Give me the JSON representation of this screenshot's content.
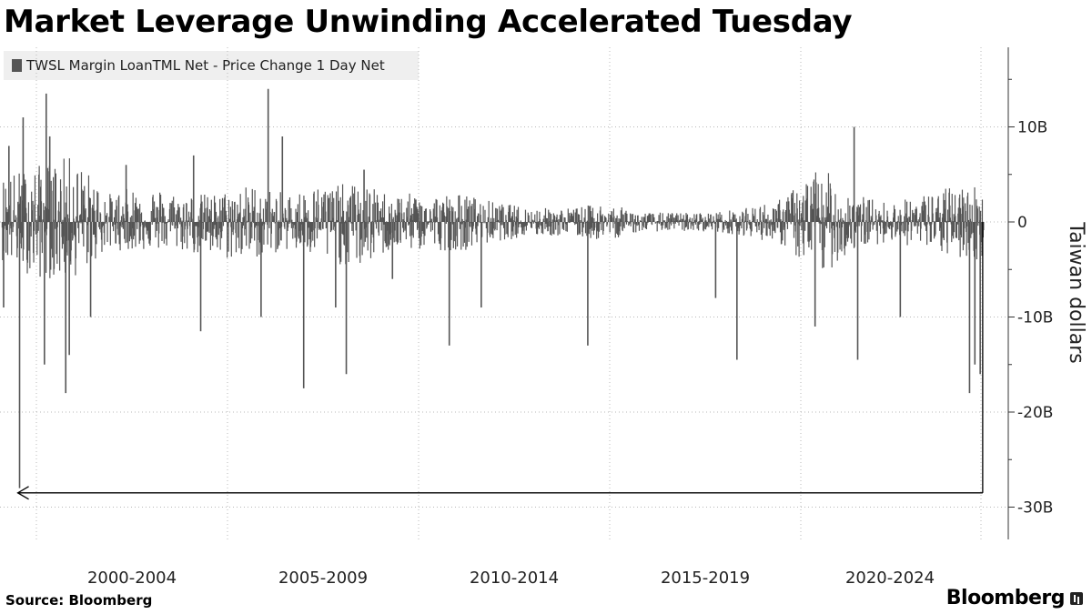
{
  "title": "Market Leverage Unwinding Accelerated Tuesday",
  "legend": {
    "label": "TWSL Margin LoanTML Net - Price Change 1 Day Net",
    "color": "#555555"
  },
  "source": "Source: Bloomberg",
  "brand": "Bloomberg",
  "chart_data": {
    "type": "bar",
    "title": "Market Leverage Unwinding Accelerated Tuesday",
    "ylabel": "Taiwan dollars",
    "xlabel": "",
    "x_ticks": [
      "2000-2004",
      "2005-2009",
      "2010-2014",
      "2015-2019",
      "2020-2024"
    ],
    "y_ticks": [
      {
        "value": 10,
        "label": "10B"
      },
      {
        "value": 0,
        "label": "0"
      },
      {
        "value": -10,
        "label": "-10B"
      },
      {
        "value": -20,
        "label": "-20B"
      },
      {
        "value": -30,
        "label": "-30B"
      }
    ],
    "ylim": [
      -33,
      18
    ],
    "xlim": [
      1998.0,
      2025.7
    ],
    "unit": "billion Taiwan dollars",
    "grid": true,
    "legend_position": "top-left",
    "series": [
      {
        "name": "TWSL Margin LoanTML Net - Price Change 1 Day Net",
        "color": "#555555",
        "envelope_year": [
          1998.0,
          1999.0,
          2000.0,
          2001.0,
          2002.0,
          2003.0,
          2004.0,
          2005.0,
          2006.0,
          2007.0,
          2008.0,
          2009.0,
          2010.0,
          2011.0,
          2012.0,
          2013.0,
          2014.0,
          2015.0,
          2016.0,
          2017.0,
          2018.0,
          2019.0,
          2020.0,
          2021.0,
          2022.0,
          2023.0,
          2024.0,
          2025.0
        ],
        "envelope_pos": [
          5,
          6,
          7,
          3,
          4,
          3,
          3,
          4,
          3,
          4,
          4,
          3,
          3,
          3,
          2,
          1.5,
          1.5,
          2,
          1,
          1,
          1,
          1.5,
          2.5,
          6,
          3,
          2,
          3,
          4
        ],
        "envelope_neg": [
          -4,
          -6,
          -6,
          -3,
          -3,
          -3,
          -4,
          -4,
          -3,
          -4,
          -5,
          -3,
          -3,
          -3,
          -2,
          -1.5,
          -1.5,
          -2,
          -1,
          -1,
          -1,
          -1.5,
          -2.5,
          -6,
          -3,
          -2,
          -3,
          -4
        ],
        "spikes": [
          {
            "x": 1998.05,
            "value": -9
          },
          {
            "x": 1998.2,
            "value": 8
          },
          {
            "x": 1998.5,
            "value": -28
          },
          {
            "x": 1998.6,
            "value": 11
          },
          {
            "x": 1999.2,
            "value": -15
          },
          {
            "x": 1999.25,
            "value": 13.5
          },
          {
            "x": 1999.35,
            "value": 9
          },
          {
            "x": 1999.8,
            "value": -18
          },
          {
            "x": 1999.9,
            "value": -14
          },
          {
            "x": 2000.5,
            "value": -10
          },
          {
            "x": 2001.5,
            "value": 6
          },
          {
            "x": 2003.4,
            "value": 7
          },
          {
            "x": 2003.6,
            "value": -11.5
          },
          {
            "x": 2005.3,
            "value": -10
          },
          {
            "x": 2005.5,
            "value": 14
          },
          {
            "x": 2005.9,
            "value": 9
          },
          {
            "x": 2006.5,
            "value": -17.5
          },
          {
            "x": 2007.4,
            "value": -9
          },
          {
            "x": 2007.7,
            "value": -16
          },
          {
            "x": 2008.2,
            "value": 5.5
          },
          {
            "x": 2009.0,
            "value": -6
          },
          {
            "x": 2010.6,
            "value": -13
          },
          {
            "x": 2011.5,
            "value": -9
          },
          {
            "x": 2014.5,
            "value": -13
          },
          {
            "x": 2018.1,
            "value": -8
          },
          {
            "x": 2018.7,
            "value": -14.5
          },
          {
            "x": 2020.9,
            "value": -11
          },
          {
            "x": 2022.0,
            "value": 10
          },
          {
            "x": 2022.1,
            "value": -14.5
          },
          {
            "x": 2023.3,
            "value": -10
          },
          {
            "x": 2025.25,
            "value": -18
          },
          {
            "x": 2025.4,
            "value": -15
          },
          {
            "x": 2025.55,
            "value": -16
          }
        ]
      }
    ],
    "annotations": [
      {
        "type": "arrow",
        "y": -28.5,
        "x_from": 2025.62,
        "x_to": 1998.45
      }
    ]
  }
}
